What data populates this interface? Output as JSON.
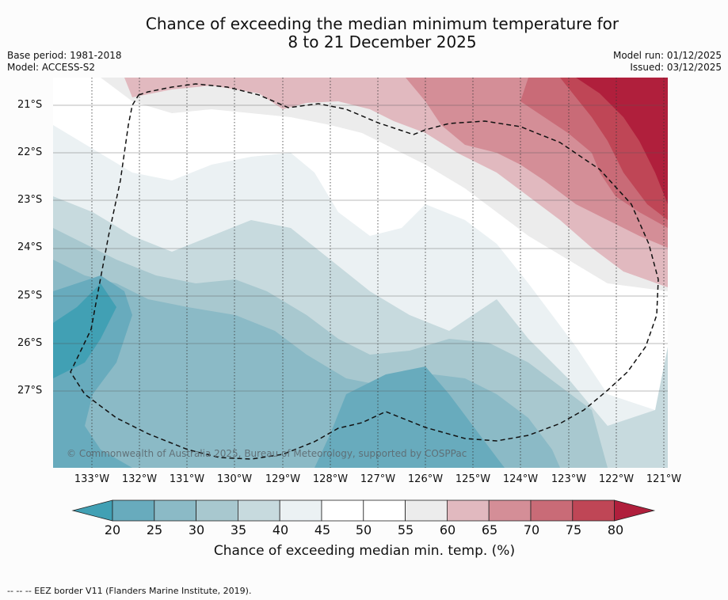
{
  "title": {
    "line1": "Chance of exceeding the median minimum temperature for",
    "line2": "8 to 21 December 2025"
  },
  "meta": {
    "base_period": "Base period: 1981-2018",
    "model": "Model: ACCESS-S2",
    "model_run": "Model run: 01/12/2025",
    "issued": "Issued: 03/12/2025"
  },
  "map": {
    "lat_labels": [
      "21°S",
      "22°S",
      "23°S",
      "24°S",
      "25°S",
      "26°S",
      "27°S"
    ],
    "lon_labels": [
      "133°W",
      "132°W",
      "131°W",
      "130°W",
      "129°W",
      "128°W",
      "127°W",
      "126°W",
      "125°W",
      "124°W",
      "123°W",
      "122°W",
      "121°W"
    ],
    "copyright": "© Commonwealth of Australia 2025, Bureau of Meteorology, supported by COSPPac"
  },
  "colorbar": {
    "ticks": [
      "20",
      "25",
      "30",
      "35",
      "40",
      "45",
      "50",
      "55",
      "60",
      "65",
      "70",
      "75",
      "80"
    ],
    "colors": [
      "#41a0b4",
      "#68abbd",
      "#8bbac6",
      "#a8c8cf",
      "#c7dade",
      "#ebf1f3",
      "#ffffff",
      "#ffffff",
      "#ececec",
      "#e1b9bf",
      "#d48e97",
      "#c96b77",
      "#bf4656",
      "#b01f3c"
    ],
    "label": "Chance of exceeding median min. temp. (%)"
  },
  "footnote": "--  --  -- EEZ border V11 (Flanders Marine Institute, 2019)."
}
